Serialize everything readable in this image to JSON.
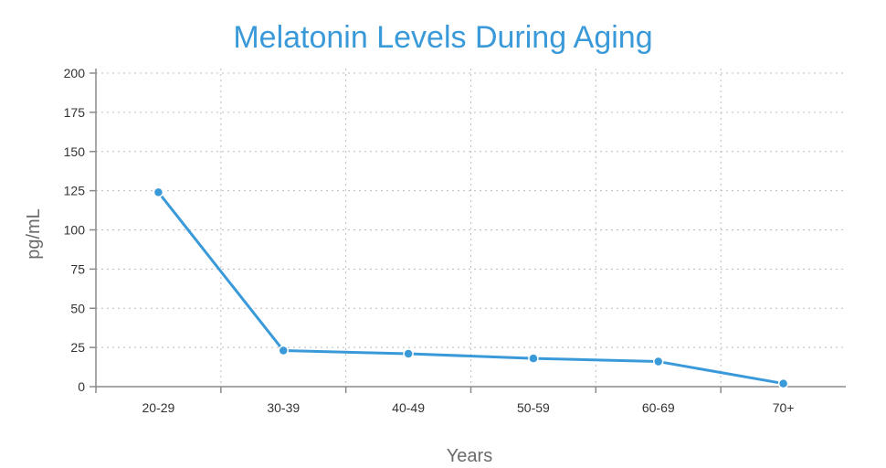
{
  "chart_data": {
    "type": "line",
    "title": "Melatonin Levels During Aging",
    "xlabel": "Years",
    "ylabel": "pg/mL",
    "categories": [
      "20-29",
      "30-39",
      "40-49",
      "50-59",
      "60-69",
      "70+"
    ],
    "series": [
      {
        "values": [
          124,
          23,
          21,
          18,
          16,
          2
        ],
        "color": "#3a9ad9"
      }
    ],
    "yticks": [
      0,
      25,
      50,
      75,
      100,
      125,
      150,
      175,
      200
    ],
    "ylim": [
      0,
      200
    ],
    "grid": true,
    "legend": "none"
  }
}
